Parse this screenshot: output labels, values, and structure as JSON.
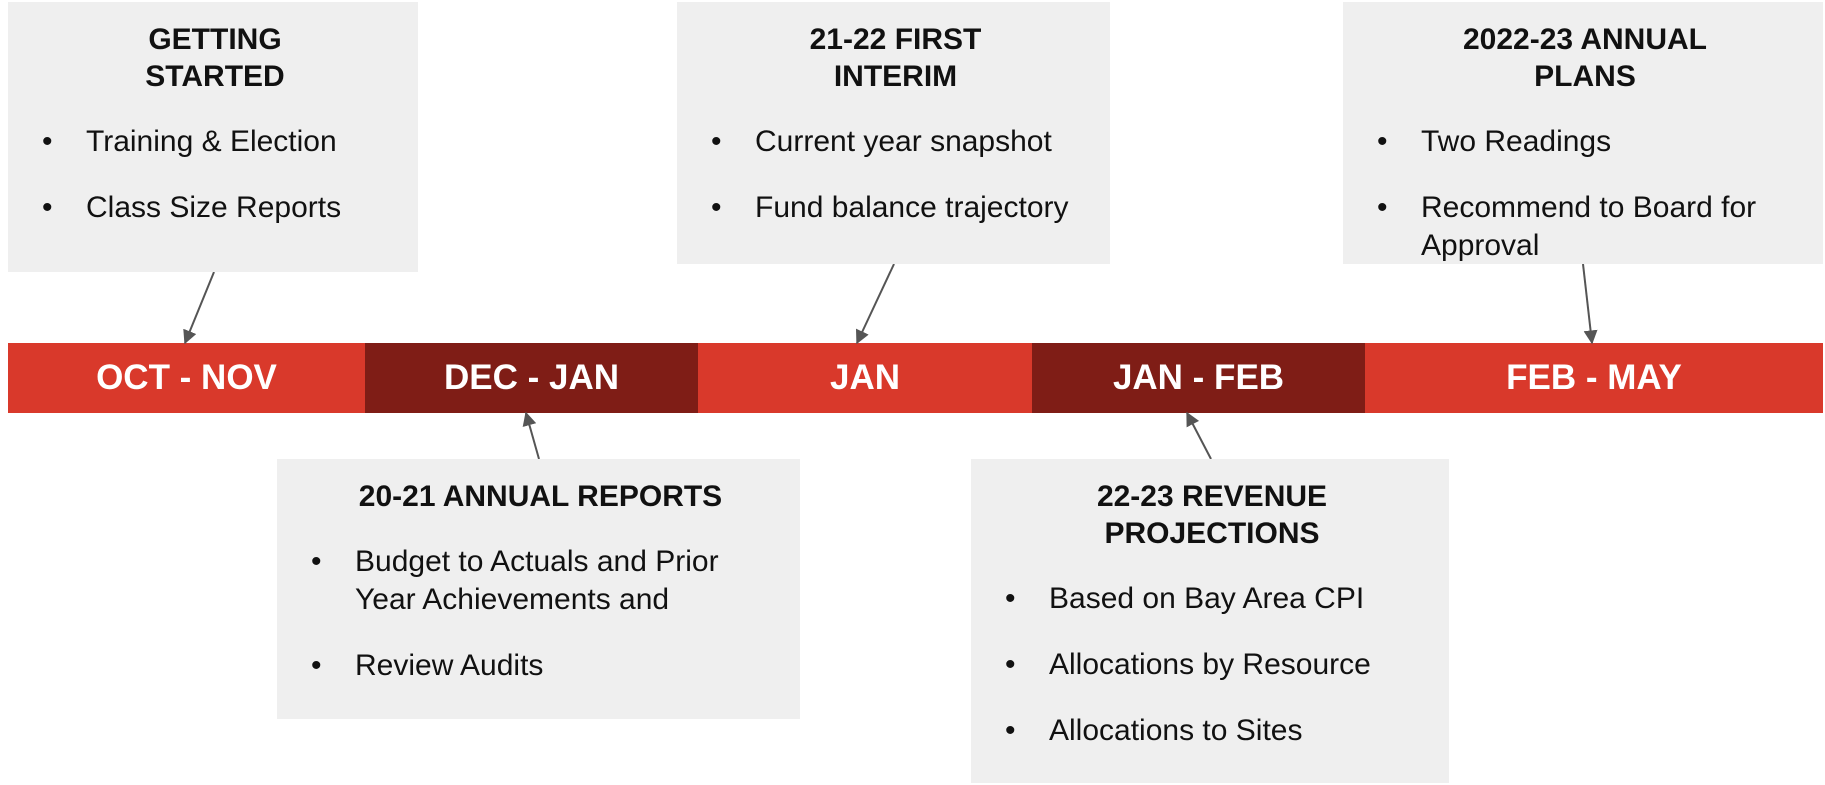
{
  "segments": [
    "OCT - NOV",
    "DEC - JAN",
    "JAN",
    "JAN - FEB",
    "FEB - MAY"
  ],
  "boxes": [
    {
      "title": "GETTING STARTED",
      "bullets": [
        "Training & Election",
        "Class Size Reports"
      ]
    },
    {
      "title": "20-21 ANNUAL REPORTS",
      "bullets": [
        "Budget to Actuals and Prior Year Achievements and",
        "Review Audits"
      ]
    },
    {
      "title": "21-22 FIRST INTERIM",
      "bullets": [
        "Current year snapshot",
        "Fund balance trajectory"
      ]
    },
    {
      "title": "22-23 REVENUE PROJECTIONS",
      "bullets": [
        "Based on Bay Area CPI",
        "Allocations by Resource",
        "Allocations to Sites"
      ]
    },
    {
      "title": "2022-23 ANNUAL PLANS",
      "bullets": [
        "Two Readings",
        "Recommend to Board for Approval"
      ]
    }
  ]
}
